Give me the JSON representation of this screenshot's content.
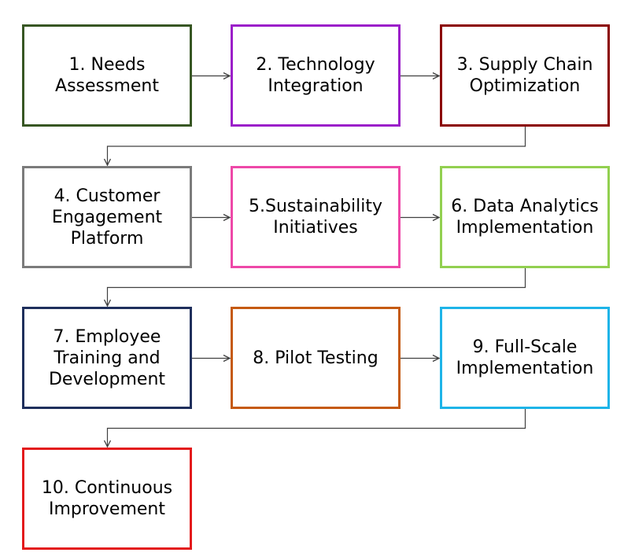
{
  "diagram": {
    "steps": [
      {
        "id": 1,
        "label": "1. Needs Assessment",
        "border_color": "#375623"
      },
      {
        "id": 2,
        "label": "2. Technology Integration",
        "border_color": "#9b1fc9"
      },
      {
        "id": 3,
        "label": "3. Supply Chain Optimization",
        "border_color": "#8b0000"
      },
      {
        "id": 4,
        "label": "4. Customer Engagement Platform",
        "border_color": "#7b7b7b"
      },
      {
        "id": 5,
        "label": "5.Sustainability Initiatives",
        "border_color": "#ee48a8"
      },
      {
        "id": 6,
        "label": "6. Data Analytics Implementation",
        "border_color": "#92d050"
      },
      {
        "id": 7,
        "label": "7. Employee Training and Development",
        "border_color": "#1f2f5c"
      },
      {
        "id": 8,
        "label": "8. Pilot Testing",
        "border_color": "#c55a11"
      },
      {
        "id": 9,
        "label": "9. Full-Scale Implementation",
        "border_color": "#1eb4e8"
      },
      {
        "id": 10,
        "label": "10. Continuous Improvement",
        "border_color": "#e31a1c"
      }
    ],
    "connector_color": "#404040"
  }
}
